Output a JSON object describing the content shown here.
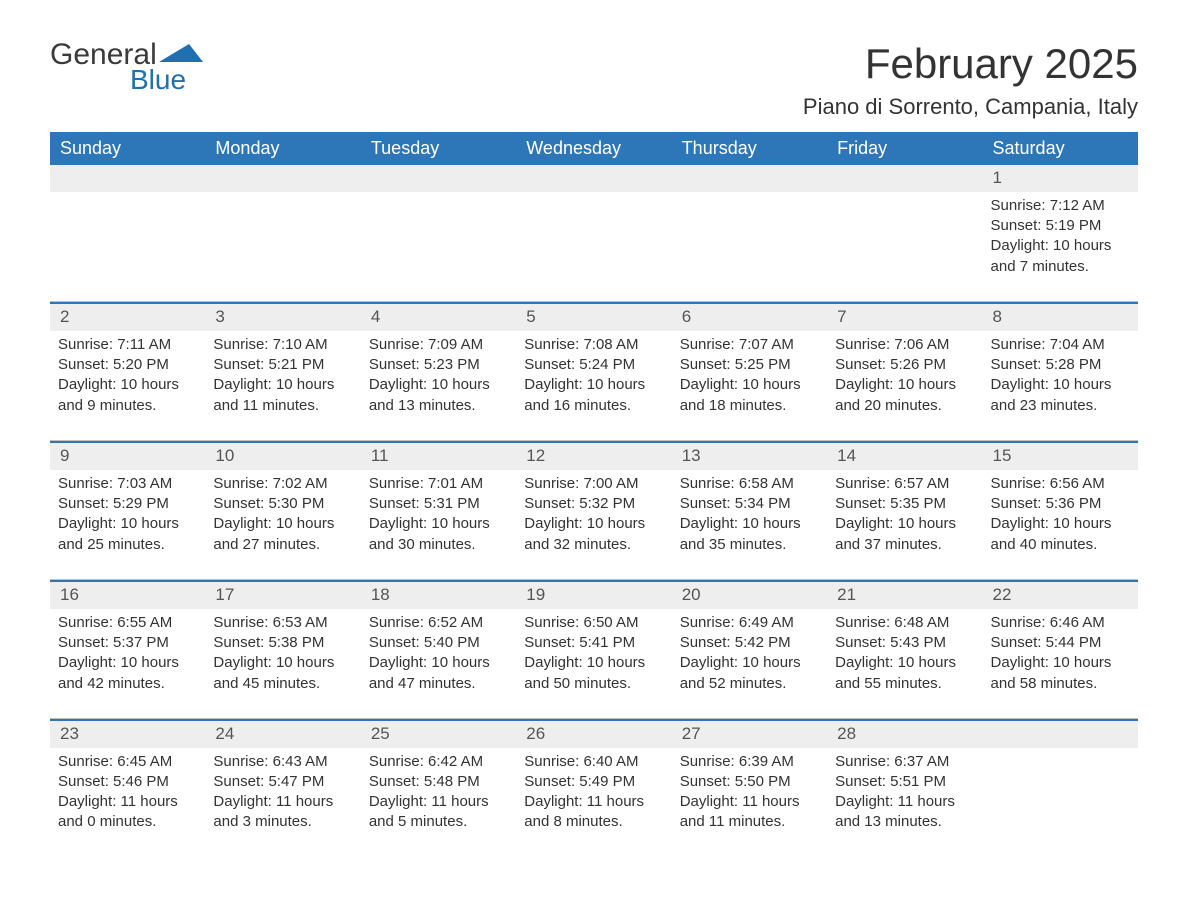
{
  "logo": {
    "text_top": "General",
    "text_bottom": "Blue",
    "top_color": "#3a3a3a",
    "bottom_color": "#1f6fb2",
    "icon_color": "#1f6fb2"
  },
  "header": {
    "month_title": "February 2025",
    "location": "Piano di Sorrento, Campania, Italy"
  },
  "style": {
    "header_bg": "#2d77b9",
    "header_fg": "#ffffff",
    "daynum_bg": "#eeeeee",
    "daynum_fg": "#555555",
    "rule_top": "#bfbfbf",
    "rule_bottom": "#2d77b9",
    "body_fg": "#333333",
    "page_bg": "#ffffff",
    "font_size_title": 42,
    "font_size_location": 22,
    "font_size_header": 18,
    "font_size_body": 15
  },
  "weekdays": [
    "Sunday",
    "Monday",
    "Tuesday",
    "Wednesday",
    "Thursday",
    "Friday",
    "Saturday"
  ],
  "weeks": [
    [
      null,
      null,
      null,
      null,
      null,
      null,
      {
        "day": "1",
        "sunrise": "Sunrise: 7:12 AM",
        "sunset": "Sunset: 5:19 PM",
        "daylight": "Daylight: 10 hours and 7 minutes."
      }
    ],
    [
      {
        "day": "2",
        "sunrise": "Sunrise: 7:11 AM",
        "sunset": "Sunset: 5:20 PM",
        "daylight": "Daylight: 10 hours and 9 minutes."
      },
      {
        "day": "3",
        "sunrise": "Sunrise: 7:10 AM",
        "sunset": "Sunset: 5:21 PM",
        "daylight": "Daylight: 10 hours and 11 minutes."
      },
      {
        "day": "4",
        "sunrise": "Sunrise: 7:09 AM",
        "sunset": "Sunset: 5:23 PM",
        "daylight": "Daylight: 10 hours and 13 minutes."
      },
      {
        "day": "5",
        "sunrise": "Sunrise: 7:08 AM",
        "sunset": "Sunset: 5:24 PM",
        "daylight": "Daylight: 10 hours and 16 minutes."
      },
      {
        "day": "6",
        "sunrise": "Sunrise: 7:07 AM",
        "sunset": "Sunset: 5:25 PM",
        "daylight": "Daylight: 10 hours and 18 minutes."
      },
      {
        "day": "7",
        "sunrise": "Sunrise: 7:06 AM",
        "sunset": "Sunset: 5:26 PM",
        "daylight": "Daylight: 10 hours and 20 minutes."
      },
      {
        "day": "8",
        "sunrise": "Sunrise: 7:04 AM",
        "sunset": "Sunset: 5:28 PM",
        "daylight": "Daylight: 10 hours and 23 minutes."
      }
    ],
    [
      {
        "day": "9",
        "sunrise": "Sunrise: 7:03 AM",
        "sunset": "Sunset: 5:29 PM",
        "daylight": "Daylight: 10 hours and 25 minutes."
      },
      {
        "day": "10",
        "sunrise": "Sunrise: 7:02 AM",
        "sunset": "Sunset: 5:30 PM",
        "daylight": "Daylight: 10 hours and 27 minutes."
      },
      {
        "day": "11",
        "sunrise": "Sunrise: 7:01 AM",
        "sunset": "Sunset: 5:31 PM",
        "daylight": "Daylight: 10 hours and 30 minutes."
      },
      {
        "day": "12",
        "sunrise": "Sunrise: 7:00 AM",
        "sunset": "Sunset: 5:32 PM",
        "daylight": "Daylight: 10 hours and 32 minutes."
      },
      {
        "day": "13",
        "sunrise": "Sunrise: 6:58 AM",
        "sunset": "Sunset: 5:34 PM",
        "daylight": "Daylight: 10 hours and 35 minutes."
      },
      {
        "day": "14",
        "sunrise": "Sunrise: 6:57 AM",
        "sunset": "Sunset: 5:35 PM",
        "daylight": "Daylight: 10 hours and 37 minutes."
      },
      {
        "day": "15",
        "sunrise": "Sunrise: 6:56 AM",
        "sunset": "Sunset: 5:36 PM",
        "daylight": "Daylight: 10 hours and 40 minutes."
      }
    ],
    [
      {
        "day": "16",
        "sunrise": "Sunrise: 6:55 AM",
        "sunset": "Sunset: 5:37 PM",
        "daylight": "Daylight: 10 hours and 42 minutes."
      },
      {
        "day": "17",
        "sunrise": "Sunrise: 6:53 AM",
        "sunset": "Sunset: 5:38 PM",
        "daylight": "Daylight: 10 hours and 45 minutes."
      },
      {
        "day": "18",
        "sunrise": "Sunrise: 6:52 AM",
        "sunset": "Sunset: 5:40 PM",
        "daylight": "Daylight: 10 hours and 47 minutes."
      },
      {
        "day": "19",
        "sunrise": "Sunrise: 6:50 AM",
        "sunset": "Sunset: 5:41 PM",
        "daylight": "Daylight: 10 hours and 50 minutes."
      },
      {
        "day": "20",
        "sunrise": "Sunrise: 6:49 AM",
        "sunset": "Sunset: 5:42 PM",
        "daylight": "Daylight: 10 hours and 52 minutes."
      },
      {
        "day": "21",
        "sunrise": "Sunrise: 6:48 AM",
        "sunset": "Sunset: 5:43 PM",
        "daylight": "Daylight: 10 hours and 55 minutes."
      },
      {
        "day": "22",
        "sunrise": "Sunrise: 6:46 AM",
        "sunset": "Sunset: 5:44 PM",
        "daylight": "Daylight: 10 hours and 58 minutes."
      }
    ],
    [
      {
        "day": "23",
        "sunrise": "Sunrise: 6:45 AM",
        "sunset": "Sunset: 5:46 PM",
        "daylight": "Daylight: 11 hours and 0 minutes."
      },
      {
        "day": "24",
        "sunrise": "Sunrise: 6:43 AM",
        "sunset": "Sunset: 5:47 PM",
        "daylight": "Daylight: 11 hours and 3 minutes."
      },
      {
        "day": "25",
        "sunrise": "Sunrise: 6:42 AM",
        "sunset": "Sunset: 5:48 PM",
        "daylight": "Daylight: 11 hours and 5 minutes."
      },
      {
        "day": "26",
        "sunrise": "Sunrise: 6:40 AM",
        "sunset": "Sunset: 5:49 PM",
        "daylight": "Daylight: 11 hours and 8 minutes."
      },
      {
        "day": "27",
        "sunrise": "Sunrise: 6:39 AM",
        "sunset": "Sunset: 5:50 PM",
        "daylight": "Daylight: 11 hours and 11 minutes."
      },
      {
        "day": "28",
        "sunrise": "Sunrise: 6:37 AM",
        "sunset": "Sunset: 5:51 PM",
        "daylight": "Daylight: 11 hours and 13 minutes."
      },
      null
    ]
  ]
}
